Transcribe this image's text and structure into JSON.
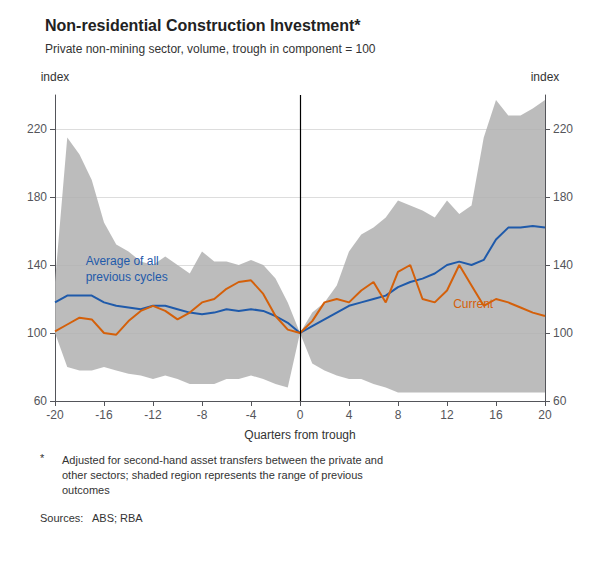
{
  "chart_data": {
    "type": "line",
    "title": "Non-residential Construction Investment*",
    "subtitle": "Private non-mining sector, volume, trough in component = 100",
    "xlabel": "Quarters from trough",
    "ylabel": "index",
    "y2label": "index",
    "xlim": [
      -20,
      20
    ],
    "xticks": [
      -20,
      -16,
      -12,
      -8,
      -4,
      0,
      4,
      8,
      12,
      16,
      20
    ],
    "ylim": [
      60,
      240
    ],
    "yticks": [
      60,
      100,
      140,
      180,
      220
    ],
    "y2lim": [
      60,
      240
    ],
    "y2ticks": [
      60,
      100,
      140,
      180,
      220
    ],
    "grid": true,
    "band": {
      "color": "#b0b0b0",
      "x": [
        -20,
        -19,
        -18,
        -17,
        -16,
        -15,
        -14,
        -13,
        -12,
        -11,
        -10,
        -9,
        -8,
        -7,
        -6,
        -5,
        -4,
        -3,
        -2,
        -1,
        0,
        1,
        2,
        3,
        4,
        5,
        6,
        7,
        8,
        9,
        10,
        11,
        12,
        13,
        14,
        15,
        16,
        17,
        18,
        19,
        20
      ],
      "lower": [
        100,
        80,
        78,
        78,
        80,
        78,
        76,
        75,
        73,
        75,
        73,
        70,
        70,
        70,
        73,
        73,
        75,
        73,
        70,
        68,
        100,
        82,
        78,
        75,
        73,
        73,
        70,
        68,
        65,
        65,
        65,
        65,
        65,
        65,
        65,
        65,
        65,
        65,
        65,
        65,
        65
      ],
      "upper": [
        130,
        215,
        205,
        190,
        165,
        152,
        148,
        142,
        140,
        145,
        140,
        135,
        148,
        142,
        142,
        140,
        143,
        140,
        132,
        118,
        100,
        112,
        118,
        128,
        148,
        158,
        162,
        168,
        178,
        175,
        172,
        168,
        178,
        170,
        175,
        215,
        237,
        228,
        228,
        232,
        237
      ]
    },
    "series": [
      {
        "color": "#1f5aaa",
        "x": [
          -20,
          -19,
          -18,
          -17,
          -16,
          -15,
          -14,
          -13,
          -12,
          -11,
          -10,
          -9,
          -8,
          -7,
          -6,
          -5,
          -4,
          -3,
          -2,
          -1,
          0,
          1,
          2,
          3,
          4,
          5,
          6,
          7,
          8,
          9,
          10,
          11,
          12,
          13,
          14,
          15,
          16,
          17,
          18,
          19,
          20
        ],
        "values": [
          118,
          122,
          122,
          122,
          118,
          116,
          115,
          114,
          116,
          116,
          114,
          112,
          111,
          112,
          114,
          113,
          114,
          113,
          110,
          106,
          100,
          104,
          108,
          112,
          116,
          118,
          120,
          122,
          127,
          130,
          132,
          135,
          140,
          142,
          140,
          143,
          155,
          162,
          162,
          163,
          162
        ]
      },
      {
        "color": "#d4600a",
        "x": [
          -20,
          -19,
          -18,
          -17,
          -16,
          -15,
          -14,
          -13,
          -12,
          -11,
          -10,
          -9,
          -8,
          -7,
          -6,
          -5,
          -4,
          -3,
          -2,
          -1,
          0,
          1,
          2,
          3,
          4,
          5,
          6,
          7,
          8,
          9,
          10,
          11,
          12,
          13,
          14,
          15,
          16,
          17,
          18,
          19,
          20
        ],
        "values": [
          101,
          105,
          109,
          108,
          100,
          99,
          107,
          113,
          116,
          113,
          108,
          112,
          118,
          120,
          126,
          130,
          131,
          123,
          110,
          102,
          100,
          107,
          118,
          120,
          118,
          125,
          130,
          118,
          136,
          140,
          120,
          118,
          125,
          140,
          128,
          116,
          120,
          118,
          115,
          112,
          110
        ]
      }
    ],
    "vline": {
      "x": 0,
      "color": "#000000"
    },
    "annotations": [
      {
        "text": "Average of all\nprevious cycles",
        "x": -17.5,
        "y": 147,
        "color": "#1f5aaa"
      },
      {
        "text": "Current",
        "x": 12.5,
        "y": 117,
        "color": "#d4600a"
      }
    ],
    "footnote_star": "*",
    "footnote": "Adjusted for second-hand asset transfers between the private and\nother sectors; shaded region represents the range of previous\noutcomes",
    "sources": "Sources:   ABS; RBA"
  }
}
